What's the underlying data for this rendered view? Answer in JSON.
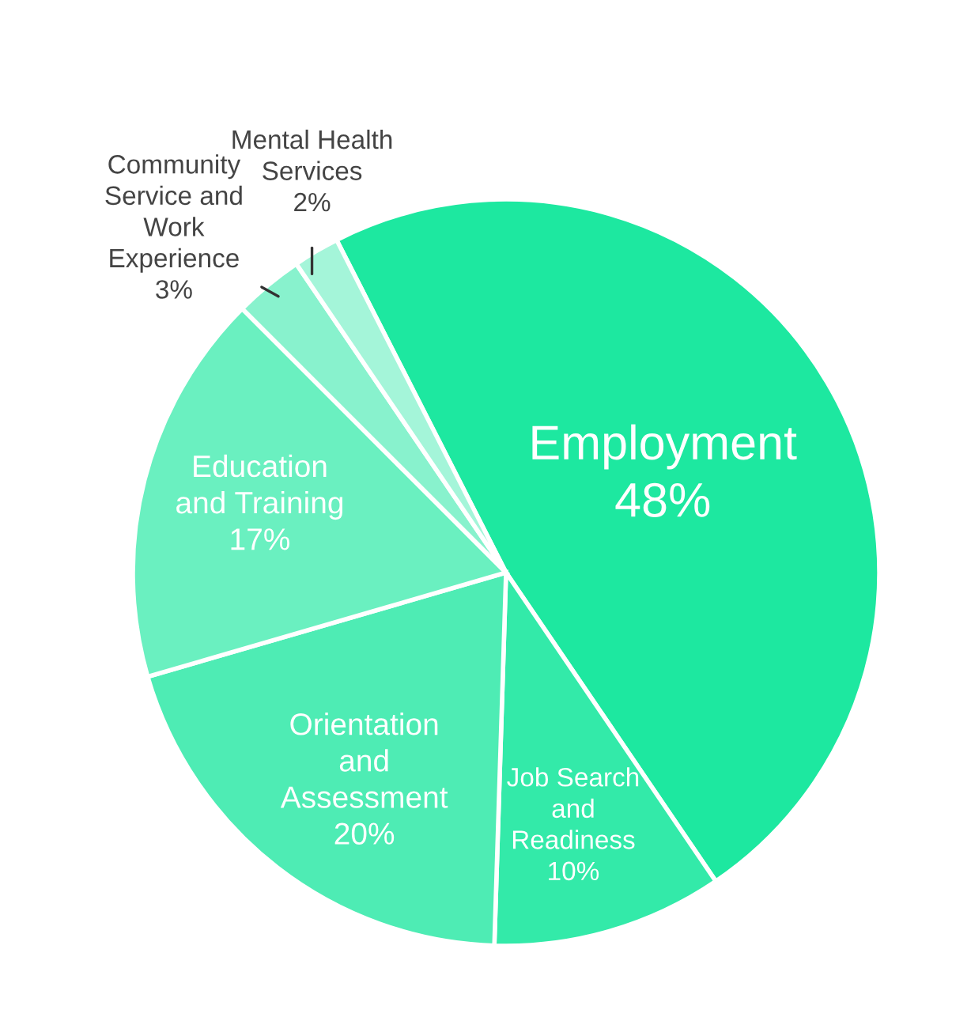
{
  "chart_data": {
    "type": "pie",
    "categories": [
      "Employment",
      "Job Search\nand\nReadiness",
      "Orientation\nand\nAssessment",
      "Education\nand Training",
      "Community\nService and\nWork\nExperience",
      "Mental Health\nServices"
    ],
    "values": [
      48,
      10,
      20,
      17,
      3,
      2
    ],
    "value_labels": [
      "48%",
      "10%",
      "20%",
      "17%",
      "3%",
      "2%"
    ],
    "colors": [
      "#1de8a0",
      "#33eaa9",
      "#4eecb4",
      "#6af0c0",
      "#88f2cd",
      "#a4f5d9"
    ]
  }
}
